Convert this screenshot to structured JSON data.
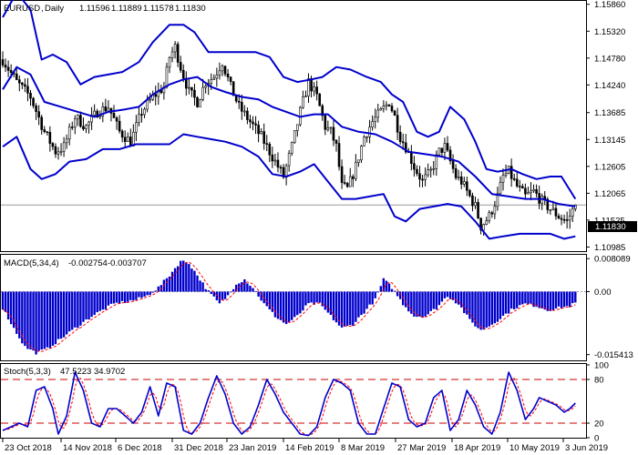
{
  "chart_data": [
    {
      "type": "candlestick",
      "panel": "price",
      "symbol": "EURUSD",
      "timeframe": "Daily",
      "ohlc_header": [
        "1.11596",
        "1.11889",
        "1.11578",
        "1.11830"
      ],
      "current_price_label": "1.11830",
      "current_price": 1.1183,
      "yticks": [
        "1.15860",
        "1.15320",
        "1.14780",
        "1.14240",
        "1.13685",
        "1.13145",
        "1.12605",
        "1.12065",
        "1.11525",
        "1.10985"
      ],
      "ylim": [
        1.1092,
        1.1591
      ],
      "xticks": [
        "23 Oct 2018",
        "14 Nov 2018",
        "6 Dec 2018",
        "31 Dec 2018",
        "23 Jan 2019",
        "14 Feb 2019",
        "8 Mar 2019",
        "27 Mar 2019",
        "18 Apr 2019",
        "10 May 2019",
        "3 Jun 2019"
      ],
      "close_path": [
        [
          0,
          1.1475
        ],
        [
          5,
          1.143
        ],
        [
          10,
          1.14
        ],
        [
          15,
          1.133
        ],
        [
          19,
          1.129
        ],
        [
          22,
          1.13
        ],
        [
          26,
          1.136
        ],
        [
          30,
          1.134
        ],
        [
          34,
          1.137
        ],
        [
          38,
          1.138
        ],
        [
          42,
          1.133
        ],
        [
          46,
          1.131
        ],
        [
          50,
          1.137
        ],
        [
          54,
          1.14
        ],
        [
          58,
          1.142
        ],
        [
          60,
          1.148
        ],
        [
          62,
          1.15
        ],
        [
          64,
          1.146
        ],
        [
          67,
          1.141
        ],
        [
          70,
          1.139
        ],
        [
          73,
          1.143
        ],
        [
          76,
          1.144
        ],
        [
          79,
          1.147
        ],
        [
          82,
          1.142
        ],
        [
          85,
          1.138
        ],
        [
          89,
          1.135
        ],
        [
          93,
          1.132
        ],
        [
          97,
          1.128
        ],
        [
          101,
          1.124
        ],
        [
          104,
          1.13
        ],
        [
          107,
          1.137
        ],
        [
          110,
          1.143
        ],
        [
          113,
          1.14
        ],
        [
          116,
          1.134
        ],
        [
          118,
          1.133
        ],
        [
          120,
          1.13
        ],
        [
          122,
          1.122
        ],
        [
          124,
          1.1215
        ],
        [
          127,
          1.126
        ],
        [
          130,
          1.132
        ],
        [
          133,
          1.135
        ],
        [
          136,
          1.137
        ],
        [
          139,
          1.139
        ],
        [
          141,
          1.136
        ],
        [
          143,
          1.132
        ],
        [
          145,
          1.13
        ],
        [
          148,
          1.126
        ],
        [
          151,
          1.123
        ],
        [
          154,
          1.125
        ],
        [
          157,
          1.129
        ],
        [
          159,
          1.13
        ],
        [
          161,
          1.127
        ],
        [
          163,
          1.124
        ],
        [
          165,
          1.123
        ],
        [
          168,
          1.12
        ],
        [
          170,
          1.118
        ],
        [
          172,
          1.114
        ],
        [
          175,
          1.116
        ],
        [
          178,
          1.12
        ],
        [
          180,
          1.124
        ],
        [
          182,
          1.125
        ],
        [
          185,
          1.122
        ],
        [
          188,
          1.12
        ],
        [
          191,
          1.121
        ],
        [
          194,
          1.119
        ],
        [
          197,
          1.1175
        ],
        [
          200,
          1.116
        ],
        [
          203,
          1.115
        ],
        [
          206,
          1.1183
        ]
      ],
      "bollinger_upper": [
        [
          0,
          1.156
        ],
        [
          5,
          1.161
        ],
        [
          10,
          1.1575
        ],
        [
          14,
          1.1475
        ],
        [
          18,
          1.1485
        ],
        [
          23,
          1.147
        ],
        [
          28,
          1.1425
        ],
        [
          33,
          1.144
        ],
        [
          38,
          1.1445
        ],
        [
          43,
          1.145
        ],
        [
          49,
          1.147
        ],
        [
          54,
          1.151
        ],
        [
          60,
          1.1545
        ],
        [
          65,
          1.1545
        ],
        [
          69,
          1.153
        ],
        [
          74,
          1.149
        ],
        [
          78,
          1.149
        ],
        [
          84,
          1.149
        ],
        [
          91,
          1.149
        ],
        [
          96,
          1.148
        ],
        [
          101,
          1.144
        ],
        [
          106,
          1.143
        ],
        [
          111,
          1.1435
        ],
        [
          115,
          1.144
        ],
        [
          120,
          1.146
        ],
        [
          125,
          1.1455
        ],
        [
          131,
          1.144
        ],
        [
          136,
          1.143
        ],
        [
          140,
          1.1405
        ],
        [
          144,
          1.139
        ],
        [
          149,
          1.133
        ],
        [
          153,
          1.132
        ],
        [
          157,
          1.133
        ],
        [
          161,
          1.138
        ],
        [
          166,
          1.1355
        ],
        [
          170,
          1.131
        ],
        [
          174,
          1.1255
        ],
        [
          178,
          1.125
        ],
        [
          183,
          1.1255
        ],
        [
          187,
          1.1245
        ],
        [
          192,
          1.1235
        ],
        [
          197,
          1.124
        ],
        [
          201,
          1.124
        ],
        [
          206,
          1.1195
        ]
      ],
      "bollinger_middle": [
        [
          0,
          1.1415
        ],
        [
          5,
          1.146
        ],
        [
          10,
          1.1445
        ],
        [
          15,
          1.139
        ],
        [
          21,
          1.138
        ],
        [
          27,
          1.137
        ],
        [
          33,
          1.136
        ],
        [
          38,
          1.137
        ],
        [
          44,
          1.1375
        ],
        [
          49,
          1.138
        ],
        [
          54,
          1.1405
        ],
        [
          60,
          1.1425
        ],
        [
          65,
          1.1435
        ],
        [
          70,
          1.144
        ],
        [
          75,
          1.142
        ],
        [
          80,
          1.141
        ],
        [
          86,
          1.14
        ],
        [
          92,
          1.1395
        ],
        [
          97,
          1.138
        ],
        [
          102,
          1.137
        ],
        [
          107,
          1.136
        ],
        [
          112,
          1.1365
        ],
        [
          117,
          1.1365
        ],
        [
          122,
          1.134
        ],
        [
          128,
          1.133
        ],
        [
          134,
          1.1325
        ],
        [
          140,
          1.131
        ],
        [
          146,
          1.129
        ],
        [
          152,
          1.1285
        ],
        [
          158,
          1.128
        ],
        [
          164,
          1.127
        ],
        [
          170,
          1.124
        ],
        [
          176,
          1.1205
        ],
        [
          182,
          1.12
        ],
        [
          188,
          1.1195
        ],
        [
          194,
          1.1195
        ],
        [
          200,
          1.1185
        ],
        [
          206,
          1.118
        ]
      ],
      "bollinger_lower": [
        [
          0,
          1.13
        ],
        [
          5,
          1.132
        ],
        [
          10,
          1.1255
        ],
        [
          14,
          1.1235
        ],
        [
          19,
          1.1245
        ],
        [
          24,
          1.127
        ],
        [
          30,
          1.1275
        ],
        [
          36,
          1.1295
        ],
        [
          42,
          1.1295
        ],
        [
          48,
          1.1305
        ],
        [
          54,
          1.1305
        ],
        [
          60,
          1.1305
        ],
        [
          65,
          1.1325
        ],
        [
          70,
          1.132
        ],
        [
          75,
          1.1315
        ],
        [
          80,
          1.131
        ],
        [
          86,
          1.13
        ],
        [
          92,
          1.128
        ],
        [
          97,
          1.1245
        ],
        [
          102,
          1.124
        ],
        [
          107,
          1.125
        ],
        [
          112,
          1.1265
        ],
        [
          117,
          1.123
        ],
        [
          122,
          1.1195
        ],
        [
          127,
          1.1195
        ],
        [
          132,
          1.12
        ],
        [
          137,
          1.1205
        ],
        [
          141,
          1.116
        ],
        [
          145,
          1.115
        ],
        [
          150,
          1.1175
        ],
        [
          155,
          1.118
        ],
        [
          160,
          1.1185
        ],
        [
          165,
          1.118
        ],
        [
          170,
          1.115
        ],
        [
          175,
          1.1115
        ],
        [
          180,
          1.112
        ],
        [
          186,
          1.1125
        ],
        [
          192,
          1.1125
        ],
        [
          197,
          1.1125
        ],
        [
          202,
          1.1115
        ],
        [
          206,
          1.112
        ]
      ]
    },
    {
      "type": "histogram",
      "panel": "macd",
      "title": "MACD(5,34,4)",
      "values_label": [
        "-0.002754",
        "-0.003707"
      ],
      "yticks": [
        "0.008089",
        "0.00",
        "-0.015413"
      ],
      "ylim": [
        -0.0166,
        0.0088
      ],
      "histogram_profile": [
        [
          0,
          -0.004
        ],
        [
          4,
          -0.009
        ],
        [
          8,
          -0.0135
        ],
        [
          12,
          -0.015
        ],
        [
          16,
          -0.014
        ],
        [
          20,
          -0.012
        ],
        [
          24,
          -0.01
        ],
        [
          28,
          -0.008
        ],
        [
          32,
          -0.006
        ],
        [
          36,
          -0.0045
        ],
        [
          40,
          -0.003
        ],
        [
          44,
          -0.0025
        ],
        [
          48,
          -0.002
        ],
        [
          52,
          -0.001
        ],
        [
          56,
          0.001
        ],
        [
          60,
          0.004
        ],
        [
          64,
          0.0075
        ],
        [
          67,
          0.007
        ],
        [
          70,
          0.004
        ],
        [
          74,
          0.0
        ],
        [
          78,
          -0.003
        ],
        [
          81,
          -0.001
        ],
        [
          84,
          0.002
        ],
        [
          87,
          0.003
        ],
        [
          90,
          0.001
        ],
        [
          94,
          -0.003
        ],
        [
          98,
          -0.006
        ],
        [
          102,
          -0.008
        ],
        [
          106,
          -0.006
        ],
        [
          110,
          -0.003
        ],
        [
          114,
          -0.003
        ],
        [
          118,
          -0.006
        ],
        [
          122,
          -0.009
        ],
        [
          126,
          -0.008
        ],
        [
          130,
          -0.005
        ],
        [
          134,
          -0.002
        ],
        [
          137,
          0.003
        ],
        [
          140,
          0.001
        ],
        [
          144,
          -0.003
        ],
        [
          148,
          -0.006
        ],
        [
          152,
          -0.006
        ],
        [
          156,
          -0.004
        ],
        [
          160,
          -0.001
        ],
        [
          164,
          -0.003
        ],
        [
          168,
          -0.007
        ],
        [
          172,
          -0.0095
        ],
        [
          176,
          -0.008
        ],
        [
          180,
          -0.006
        ],
        [
          184,
          -0.004
        ],
        [
          188,
          -0.003
        ],
        [
          192,
          -0.0035
        ],
        [
          196,
          -0.0045
        ],
        [
          200,
          -0.004
        ],
        [
          204,
          -0.0035
        ],
        [
          206,
          -0.0028
        ]
      ]
    },
    {
      "type": "line",
      "panel": "stochastic",
      "title": "Stoch(5,3,3)",
      "values_label": [
        "47.5223",
        "34.9702"
      ],
      "yticks": [
        "100",
        "80",
        "20",
        "0"
      ],
      "ylim": [
        0,
        100
      ],
      "levels": [
        80,
        20
      ],
      "k_path": [
        [
          0,
          10
        ],
        [
          3,
          15
        ],
        [
          6,
          20
        ],
        [
          9,
          15
        ],
        [
          12,
          65
        ],
        [
          15,
          70
        ],
        [
          18,
          40
        ],
        [
          20,
          5
        ],
        [
          23,
          30
        ],
        [
          26,
          90
        ],
        [
          29,
          65
        ],
        [
          32,
          20
        ],
        [
          35,
          15
        ],
        [
          38,
          40
        ],
        [
          41,
          40
        ],
        [
          44,
          30
        ],
        [
          47,
          20
        ],
        [
          50,
          35
        ],
        [
          53,
          70
        ],
        [
          56,
          30
        ],
        [
          59,
          75
        ],
        [
          62,
          70
        ],
        [
          65,
          10
        ],
        [
          68,
          5
        ],
        [
          71,
          20
        ],
        [
          74,
          55
        ],
        [
          77,
          85
        ],
        [
          80,
          60
        ],
        [
          83,
          20
        ],
        [
          86,
          5
        ],
        [
          89,
          15
        ],
        [
          92,
          45
        ],
        [
          95,
          80
        ],
        [
          98,
          60
        ],
        [
          101,
          35
        ],
        [
          104,
          20
        ],
        [
          107,
          5
        ],
        [
          110,
          3
        ],
        [
          113,
          15
        ],
        [
          116,
          55
        ],
        [
          119,
          80
        ],
        [
          122,
          75
        ],
        [
          125,
          65
        ],
        [
          128,
          20
        ],
        [
          131,
          5
        ],
        [
          134,
          5
        ],
        [
          137,
          40
        ],
        [
          140,
          75
        ],
        [
          143,
          70
        ],
        [
          146,
          25
        ],
        [
          149,
          15
        ],
        [
          152,
          20
        ],
        [
          155,
          55
        ],
        [
          158,
          65
        ],
        [
          161,
          10
        ],
        [
          164,
          25
        ],
        [
          167,
          65
        ],
        [
          170,
          45
        ],
        [
          173,
          15
        ],
        [
          176,
          5
        ],
        [
          179,
          35
        ],
        [
          182,
          90
        ],
        [
          185,
          65
        ],
        [
          188,
          25
        ],
        [
          191,
          40
        ],
        [
          193,
          55
        ],
        [
          196,
          50
        ],
        [
          199,
          45
        ],
        [
          202,
          35
        ],
        [
          204,
          40
        ],
        [
          206,
          47.5
        ]
      ]
    }
  ]
}
